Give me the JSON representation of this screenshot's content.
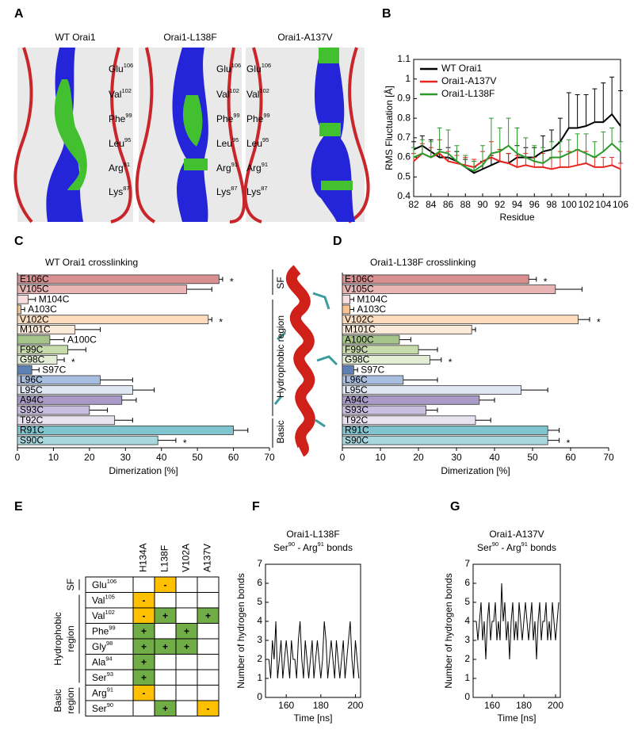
{
  "panel_labels": [
    "A",
    "B",
    "C",
    "D",
    "E",
    "F",
    "G"
  ],
  "panel_a": {
    "titles": [
      "WT Orai1",
      "Orai1-L138F",
      "Orai1-A137V"
    ],
    "residues": [
      {
        "name": "Glu",
        "num": "106"
      },
      {
        "name": "Val",
        "num": "102"
      },
      {
        "name": "Phe",
        "num": "99"
      },
      {
        "name": "Leu",
        "num": "95"
      },
      {
        "name": "Arg",
        "num": "91"
      },
      {
        "name": "Lys",
        "num": "87"
      }
    ]
  },
  "helix_regions": [
    "SF",
    "Hydrophobic region",
    "Basic"
  ],
  "chart_data": [
    {
      "type": "line",
      "xlabel": "Residue",
      "ylabel": "RMS Fluctuation [Å]",
      "legend": "upper left",
      "x": [
        82,
        83,
        84,
        85,
        86,
        87,
        88,
        89,
        90,
        91,
        92,
        93,
        94,
        95,
        96,
        97,
        98,
        99,
        100,
        101,
        102,
        103,
        104,
        105,
        106
      ],
      "xlim": [
        82,
        106
      ],
      "xticks": [
        82,
        84,
        86,
        88,
        90,
        92,
        94,
        96,
        98,
        100,
        102,
        104,
        106
      ],
      "ylim": [
        0.4,
        1.1
      ],
      "yticks": [
        0.4,
        0.5,
        0.6,
        0.7,
        0.8,
        0.9,
        1,
        1.1
      ],
      "series": [
        {
          "name": "WT Orai1",
          "color": "#000000",
          "values": [
            0.64,
            0.66,
            0.63,
            0.6,
            0.6,
            0.58,
            0.55,
            0.52,
            0.54,
            0.56,
            0.58,
            0.57,
            0.6,
            0.6,
            0.6,
            0.63,
            0.64,
            0.68,
            0.75,
            0.75,
            0.76,
            0.78,
            0.78,
            0.82,
            0.76
          ],
          "errors": [
            0.04,
            0.05,
            0.06,
            0.04,
            0.05,
            0.05,
            0.04,
            0.03,
            0.04,
            0.05,
            0.06,
            0.05,
            0.06,
            0.05,
            0.05,
            0.08,
            0.1,
            0.12,
            0.18,
            0.17,
            0.16,
            0.17,
            0.2,
            0.19,
            0.18
          ]
        },
        {
          "name": "Orai1-A137V",
          "color": "#e8251f",
          "values": [
            0.58,
            0.62,
            0.6,
            0.62,
            0.58,
            0.57,
            0.56,
            0.55,
            0.58,
            0.6,
            0.58,
            0.57,
            0.55,
            0.56,
            0.55,
            0.55,
            0.54,
            0.55,
            0.55,
            0.56,
            0.57,
            0.55,
            0.55,
            0.56,
            0.54
          ],
          "errors": [
            0.04,
            0.05,
            0.05,
            0.07,
            0.05,
            0.04,
            0.04,
            0.04,
            0.05,
            0.08,
            0.06,
            0.05,
            0.06,
            0.06,
            0.05,
            0.07,
            0.06,
            0.08,
            0.08,
            0.08,
            0.06,
            0.05,
            0.05,
            0.04,
            0.03
          ]
        },
        {
          "name": "Orai1-L138F",
          "color": "#2a9a2a",
          "values": [
            0.6,
            0.62,
            0.6,
            0.63,
            0.62,
            0.58,
            0.55,
            0.53,
            0.56,
            0.62,
            0.63,
            0.66,
            0.62,
            0.6,
            0.58,
            0.57,
            0.6,
            0.6,
            0.62,
            0.64,
            0.62,
            0.6,
            0.63,
            0.67,
            0.63
          ],
          "errors": [
            0.05,
            0.07,
            0.08,
            0.12,
            0.12,
            0.08,
            0.06,
            0.05,
            0.1,
            0.18,
            0.12,
            0.14,
            0.13,
            0.1,
            0.08,
            0.08,
            0.08,
            0.08,
            0.07,
            0.08,
            0.1,
            0.08,
            0.1,
            0.08,
            0.05
          ]
        }
      ]
    },
    {
      "type": "barh",
      "title": "WT Orai1 crosslinking",
      "xlabel": "Dimerization [%]",
      "categories": [
        "E106C",
        "V105C",
        "M104C",
        "A103C",
        "V102C",
        "M101C",
        "A100C",
        "F99C",
        "G98C",
        "S97C",
        "L96C",
        "L95C",
        "A94C",
        "S93C",
        "T92C",
        "R91C",
        "S90C"
      ],
      "values": [
        56,
        47,
        3,
        1,
        53,
        16,
        9,
        14,
        11,
        4,
        23,
        32,
        29,
        20,
        27,
        60,
        39
      ],
      "errors": [
        1,
        7,
        2,
        1,
        1,
        7,
        4,
        5,
        2,
        2,
        9,
        6,
        4,
        5,
        5,
        4,
        5
      ],
      "annotations": [
        "*",
        null,
        null,
        null,
        "*",
        null,
        null,
        null,
        "*",
        null,
        null,
        null,
        null,
        null,
        null,
        null,
        "*"
      ],
      "colors": [
        "#d98f8f",
        "#e8b4b4",
        "#f6dede",
        "#f7c393",
        "#fcdcbd",
        "#fdebd9",
        "#a5c489",
        "#c7dcaa",
        "#e3eed5",
        "#5d80b6",
        "#a8bee0",
        "#dfe7f3",
        "#a99ac8",
        "#c8bee0",
        "#e9e3f1",
        "#7fc4ce",
        "#a8d8de"
      ],
      "xlim": [
        0,
        70
      ],
      "xticks": [
        0,
        10,
        20,
        30,
        40,
        50,
        60,
        70
      ]
    },
    {
      "type": "barh",
      "title": "Orai1-L138F crosslinking",
      "xlabel": "Dimerization [%]",
      "categories": [
        "E106C",
        "V105C",
        "M104C",
        "A103C",
        "V102C",
        "M101C",
        "A100C",
        "F99C",
        "G98C",
        "S97C",
        "L96C",
        "L95C",
        "A94C",
        "S93C",
        "T92C",
        "R91C",
        "S90C"
      ],
      "values": [
        49,
        56,
        2,
        2,
        62,
        34,
        15,
        20,
        23,
        3,
        16,
        47,
        36,
        22,
        35,
        54,
        54
      ],
      "errors": [
        2,
        7,
        1,
        1,
        3,
        1,
        3,
        5,
        3,
        1,
        9,
        7,
        4,
        3,
        4,
        3,
        3
      ],
      "annotations": [
        "*",
        null,
        null,
        null,
        "*",
        null,
        null,
        null,
        "*",
        null,
        null,
        null,
        null,
        null,
        null,
        null,
        "*"
      ],
      "colors": [
        "#d98f8f",
        "#e8b4b4",
        "#f6dede",
        "#f7c393",
        "#fcdcbd",
        "#fdebd9",
        "#a5c489",
        "#c7dcaa",
        "#e3eed5",
        "#5d80b6",
        "#a8bee0",
        "#dfe7f3",
        "#a99ac8",
        "#c8bee0",
        "#e9e3f1",
        "#7fc4ce",
        "#a8d8de"
      ],
      "xlim": [
        0,
        70
      ],
      "xticks": [
        0,
        10,
        20,
        30,
        40,
        50,
        60,
        70
      ]
    },
    {
      "type": "line",
      "title": "Orai1-L138F",
      "subtitle": [
        "Ser",
        "90",
        " - Arg",
        "91",
        " bonds"
      ],
      "xlabel": "Time [ns]",
      "ylabel": "Number of hydrogen bonds",
      "color": "#000000",
      "x": [
        150,
        151,
        152,
        153,
        154,
        155,
        156,
        157,
        158,
        159,
        160,
        161,
        162,
        163,
        164,
        165,
        166,
        167,
        168,
        169,
        170,
        171,
        172,
        173,
        174,
        175,
        176,
        177,
        178,
        179,
        180,
        181,
        182,
        183,
        184,
        185,
        186,
        187,
        188,
        189,
        190,
        191,
        192,
        193,
        194,
        195,
        196,
        197,
        198,
        199,
        200,
        201,
        202
      ],
      "values": [
        2,
        1,
        3,
        2,
        4,
        1,
        2,
        3,
        1,
        2,
        3,
        2,
        1,
        3,
        2,
        2,
        1,
        3,
        4,
        2,
        1,
        3,
        2,
        1,
        2,
        3,
        1,
        2,
        3,
        2,
        1,
        2,
        4,
        3,
        1,
        2,
        3,
        2,
        1,
        3,
        2,
        1,
        2,
        3,
        1,
        2,
        3,
        4,
        2,
        1,
        3,
        2,
        1
      ],
      "xlim": [
        148,
        203
      ],
      "xticks": [
        160,
        180,
        200
      ],
      "ylim": [
        0,
        7
      ],
      "yticks": [
        0,
        1,
        2,
        3,
        4,
        5,
        6,
        7
      ]
    },
    {
      "type": "line",
      "title": "Orai1-A137V",
      "subtitle": [
        "Ser",
        "90",
        " - Arg",
        "91",
        " bonds"
      ],
      "xlabel": "Time [ns]",
      "ylabel": "Number of hydrogen bonds",
      "color": "#000000",
      "x": [
        150,
        151,
        152,
        153,
        154,
        155,
        156,
        157,
        158,
        159,
        160,
        161,
        162,
        163,
        164,
        165,
        166,
        167,
        168,
        169,
        170,
        171,
        172,
        173,
        174,
        175,
        176,
        177,
        178,
        179,
        180,
        181,
        182,
        183,
        184,
        185,
        186,
        187,
        188,
        189,
        190,
        191,
        192,
        193,
        194,
        195,
        196,
        197,
        198,
        199,
        200,
        201,
        202
      ],
      "values": [
        4,
        3,
        4,
        5,
        3,
        4,
        2,
        4,
        5,
        3,
        4,
        4,
        5,
        3,
        4,
        3,
        6,
        4,
        5,
        3,
        4,
        2,
        4,
        5,
        3,
        4,
        3,
        5,
        4,
        3,
        4,
        5,
        4,
        3,
        4,
        5,
        3,
        4,
        2,
        4,
        5,
        3,
        4,
        4,
        5,
        3,
        4,
        3,
        5,
        4,
        3,
        4,
        5
      ],
      "xlim": [
        148,
        203
      ],
      "xticks": [
        160,
        180,
        200
      ],
      "ylim": [
        0,
        7
      ],
      "yticks": [
        0,
        1,
        2,
        3,
        4,
        5,
        6,
        7
      ]
    }
  ],
  "panel_e": {
    "columns": [
      "H134A",
      "L138F",
      "V102A",
      "A137V"
    ],
    "cell_colors": {
      "+": "#70ad47",
      "-": "#ffc000"
    },
    "rows": [
      {
        "residue": {
          "name": "Glu",
          "num": "106"
        },
        "cells": [
          null,
          "-",
          null,
          null
        ]
      },
      {
        "residue": {
          "name": "Val",
          "num": "105"
        },
        "cells": [
          "-",
          null,
          null,
          null
        ]
      },
      {
        "residue": {
          "name": "Val",
          "num": "102"
        },
        "cells": [
          "-",
          "+",
          null,
          "+"
        ]
      },
      {
        "residue": {
          "name": "Phe",
          "num": "99"
        },
        "cells": [
          "+",
          null,
          "+",
          null
        ]
      },
      {
        "residue": {
          "name": "Gly",
          "num": "98"
        },
        "cells": [
          "+",
          "+",
          "+",
          null
        ]
      },
      {
        "residue": {
          "name": "Ala",
          "num": "94"
        },
        "cells": [
          "+",
          null,
          null,
          null
        ]
      },
      {
        "residue": {
          "name": "Ser",
          "num": "93"
        },
        "cells": [
          "+",
          null,
          null,
          null
        ]
      },
      {
        "residue": {
          "name": "Arg",
          "num": "91"
        },
        "cells": [
          "-",
          null,
          null,
          null
        ]
      },
      {
        "residue": {
          "name": "Ser",
          "num": "90"
        },
        "cells": [
          null,
          "+",
          null,
          "-"
        ]
      }
    ],
    "regions": [
      {
        "lines": [
          "SF"
        ]
      },
      {
        "lines": [
          "Hydrophobic",
          "region"
        ]
      },
      {
        "lines": [
          "Basic",
          "region"
        ]
      }
    ]
  }
}
